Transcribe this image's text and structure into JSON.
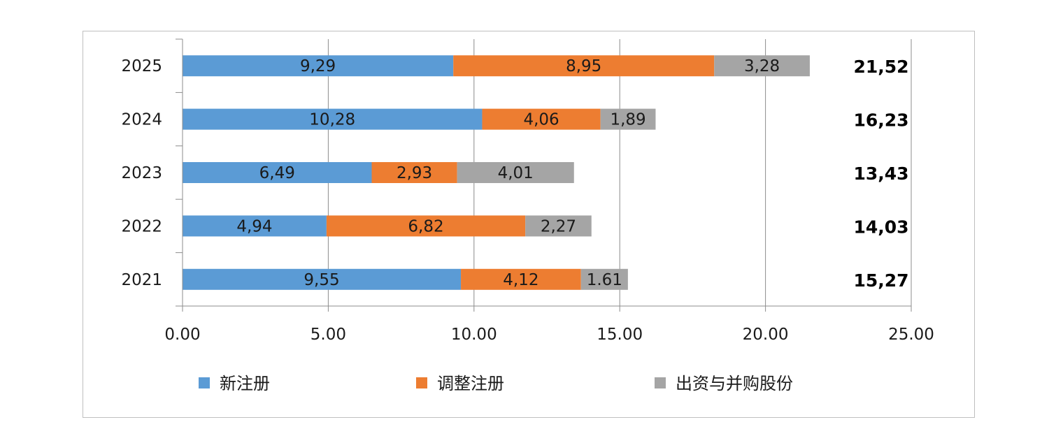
{
  "chart_data": {
    "type": "bar",
    "orientation": "horizontal",
    "stacked": true,
    "categories": [
      "2025",
      "2024",
      "2023",
      "2022",
      "2021"
    ],
    "series": [
      {
        "name": "新注册",
        "color": "#5b9bd5",
        "values": [
          9.29,
          10.28,
          6.49,
          4.94,
          9.55
        ],
        "labels": [
          "9,29",
          "10,28",
          "6,49",
          "4,94",
          "9,55"
        ]
      },
      {
        "name": "调整注册",
        "color": "#ed7d31",
        "values": [
          8.95,
          4.06,
          2.93,
          6.82,
          4.12
        ],
        "labels": [
          "8,95",
          "4,06",
          "2,93",
          "6,82",
          "4,12"
        ]
      },
      {
        "name": "出资与并购股份",
        "color": "#a5a5a5",
        "values": [
          3.28,
          1.89,
          4.01,
          2.27,
          1.61
        ],
        "labels": [
          "3,28",
          "1,89",
          "4,01",
          "2,27",
          "1.61"
        ]
      }
    ],
    "totals": [
      "21,52",
      "16,23",
      "13,43",
      "14,03",
      "15,27"
    ],
    "xlim": [
      0,
      25
    ],
    "xticks": [
      "0.00",
      "5.00",
      "10.00",
      "15.00",
      "20.00",
      "25.00"
    ],
    "grid": "vertical",
    "legend_position": "bottom"
  }
}
